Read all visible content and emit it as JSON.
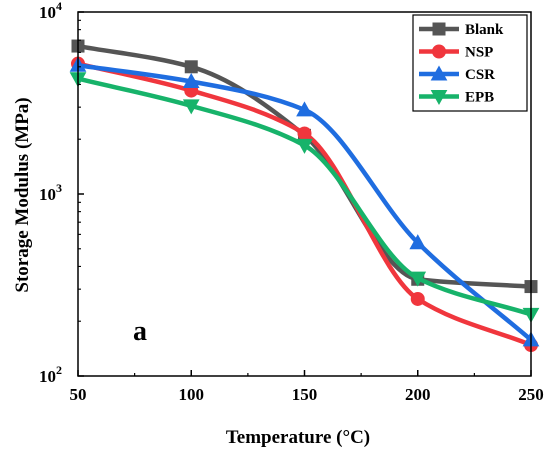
{
  "chart_data": {
    "type": "line",
    "xlabel": "Temperature (°C)",
    "ylabel": "Storage Modulus (MPa)",
    "panel_label": "a",
    "xlim": [
      50,
      250
    ],
    "ylim": [
      100,
      10000
    ],
    "yscale": "log",
    "x_ticks": [
      "50",
      "100",
      "150",
      "200",
      "250"
    ],
    "y_ticks": [
      {
        "base": "10",
        "exp": "2"
      },
      {
        "base": "10",
        "exp": "3"
      },
      {
        "base": "10",
        "exp": "4"
      }
    ],
    "grid": false,
    "legend_position": "top-right",
    "series": [
      {
        "name": "Blank",
        "color": "#555555",
        "marker": "square",
        "x": [
          50,
          100,
          150,
          200,
          250
        ],
        "y": [
          6500,
          5000,
          2100,
          340,
          310
        ]
      },
      {
        "name": "NSP",
        "color": "#f0363d",
        "marker": "circle",
        "x": [
          50,
          100,
          150,
          200,
          250
        ],
        "y": [
          5200,
          3700,
          2150,
          265,
          148
        ]
      },
      {
        "name": "CSR",
        "color": "#1f6de0",
        "marker": "triangle-up",
        "x": [
          50,
          100,
          150,
          200,
          250
        ],
        "y": [
          5100,
          4150,
          2900,
          540,
          158
        ]
      },
      {
        "name": "EPB",
        "color": "#17b36a",
        "marker": "triangle-down",
        "x": [
          50,
          100,
          150,
          200,
          250
        ],
        "y": [
          4300,
          3050,
          1850,
          345,
          218
        ]
      }
    ]
  }
}
